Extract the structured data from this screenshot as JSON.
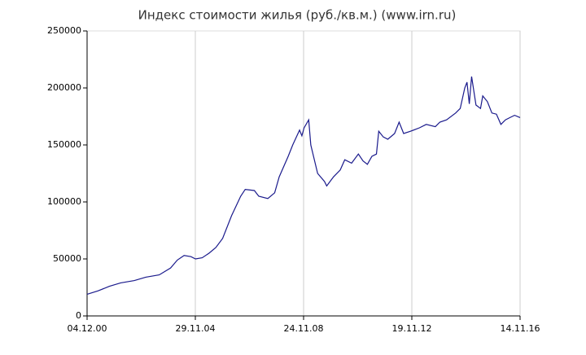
{
  "chart_data": {
    "type": "line",
    "title": "Индекс стоимости жилья (руб./кв.м.) (www.irn.ru)",
    "x": [
      "04.12.00",
      "01.05.01",
      "01.10.01",
      "01.03.02",
      "01.09.02",
      "01.02.03",
      "01.08.03",
      "01.01.04",
      "01.04.04",
      "01.07.04",
      "01.10.04",
      "01.12.04",
      "01.03.05",
      "01.06.05",
      "01.09.05",
      "01.12.05",
      "01.04.06",
      "01.08.06",
      "01.10.06",
      "01.02.07",
      "01.04.07",
      "01.08.07",
      "01.11.07",
      "01.01.08",
      "01.05.08",
      "01.07.08",
      "01.10.08",
      "01.11.08",
      "01.12.08",
      "01.02.09",
      "01.03.09",
      "01.06.09",
      "01.09.09",
      "01.10.09",
      "01.01.10",
      "01.04.10",
      "01.06.10",
      "01.09.10",
      "01.12.10",
      "01.02.11",
      "01.04.11",
      "01.06.11",
      "01.08.11",
      "01.09.11",
      "01.11.11",
      "01.01.12",
      "01.04.12",
      "01.06.12",
      "01.08.12",
      "01.11.12",
      "01.03.13",
      "01.06.13",
      "01.10.13",
      "01.12.13",
      "01.03.14",
      "01.07.14",
      "01.09.14",
      "01.11.14",
      "01.12.14",
      "01.01.15",
      "01.02.15",
      "01.04.15",
      "01.06.15",
      "01.07.15",
      "01.09.15",
      "01.11.15",
      "01.01.16",
      "01.03.16",
      "01.05.16",
      "01.07.16",
      "01.09.16",
      "14.11.16"
    ],
    "series": [
      {
        "color": "#1a1a8c",
        "values": [
          19000,
          22000,
          26000,
          29000,
          31000,
          34000,
          36000,
          42000,
          49000,
          53000,
          52000,
          50000,
          51000,
          55000,
          60000,
          68000,
          88000,
          105000,
          111000,
          110000,
          105000,
          103000,
          108000,
          122000,
          140000,
          150000,
          163000,
          158000,
          165000,
          172000,
          150000,
          125000,
          118000,
          114000,
          122000,
          128000,
          137000,
          134000,
          142000,
          136000,
          133000,
          140000,
          142000,
          162000,
          157000,
          155000,
          160000,
          170000,
          160000,
          162000,
          165000,
          168000,
          166000,
          170000,
          172000,
          178000,
          182000,
          200000,
          205000,
          186000,
          210000,
          185000,
          182000,
          193000,
          188000,
          178000,
          177000,
          168000,
          172000,
          174000,
          176000,
          174000
        ]
      }
    ],
    "xlim": [
      "04.12.00",
      "14.11.16"
    ],
    "xticks": [
      "04.12.00",
      "29.11.04",
      "24.11.08",
      "19.11.12",
      "14.11.16"
    ],
    "ylim": [
      0,
      250000
    ],
    "yticks": [
      0,
      50000,
      100000,
      150000,
      200000,
      250000
    ],
    "grid": true
  }
}
